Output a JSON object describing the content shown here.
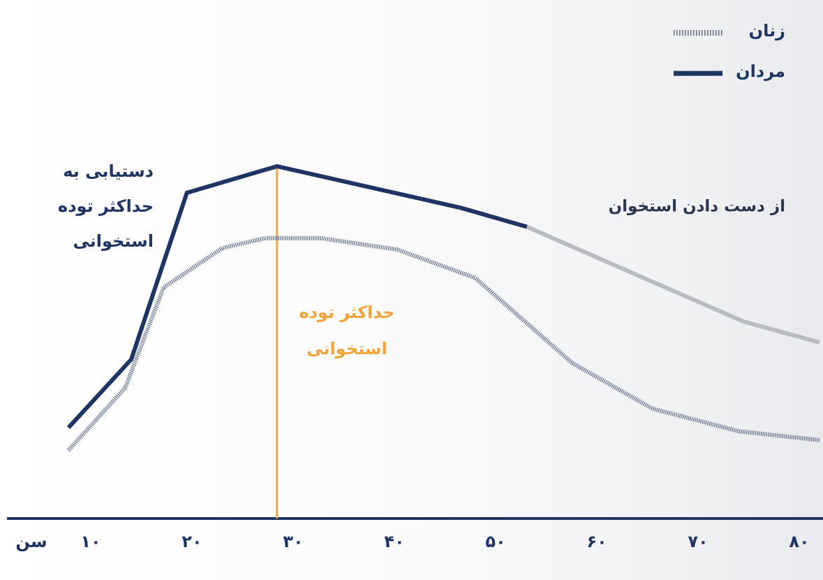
{
  "chart_data": {
    "type": "line",
    "x_label": "سن",
    "xlim": [
      2,
      82
    ],
    "ylim": [
      0,
      100
    ],
    "xticks": [
      {
        "value": 10,
        "label": "۱۰"
      },
      {
        "value": 20,
        "label": "۲۰"
      },
      {
        "value": 30,
        "label": "۳۰"
      },
      {
        "value": 40,
        "label": "۴۰"
      },
      {
        "value": 50,
        "label": "۵۰"
      },
      {
        "value": 60,
        "label": "۶۰"
      },
      {
        "value": 70,
        "label": "۷۰"
      },
      {
        "value": 80,
        "label": "۸۰"
      }
    ],
    "series": [
      {
        "name": "زنان",
        "color": "#5d6a88",
        "style": "hatched",
        "x": [
          7.8,
          13.4,
          17.2,
          23,
          27.2,
          32.8,
          40.3,
          48,
          57.6,
          65.5,
          74.1,
          82
        ],
        "values": [
          18,
          34.5,
          61,
          71.4,
          74,
          74,
          71,
          63.5,
          41,
          29,
          23,
          20.7
        ]
      },
      {
        "name": "مردان",
        "color": "#1e3563",
        "style": "solid",
        "x": [
          7.8,
          14,
          19.5,
          28.4,
          46.6,
          53.1
        ],
        "values": [
          24,
          42,
          86,
          93,
          82,
          77
        ]
      },
      {
        "color": "#b8bbc2",
        "style": "solid",
        "x": [
          53.1,
          74.5,
          82
        ],
        "values": [
          77,
          52,
          46.5
        ]
      }
    ],
    "peak_age": 28.4,
    "peak_color": "#f0a43a",
    "annotations": {
      "rise": [
        "دستیابی به",
        "حداکثر توده",
        "استخوانی"
      ],
      "peak": [
        "حداکثر توده",
        "استخوانی"
      ],
      "loss": "از دست دادن استخوان"
    }
  }
}
